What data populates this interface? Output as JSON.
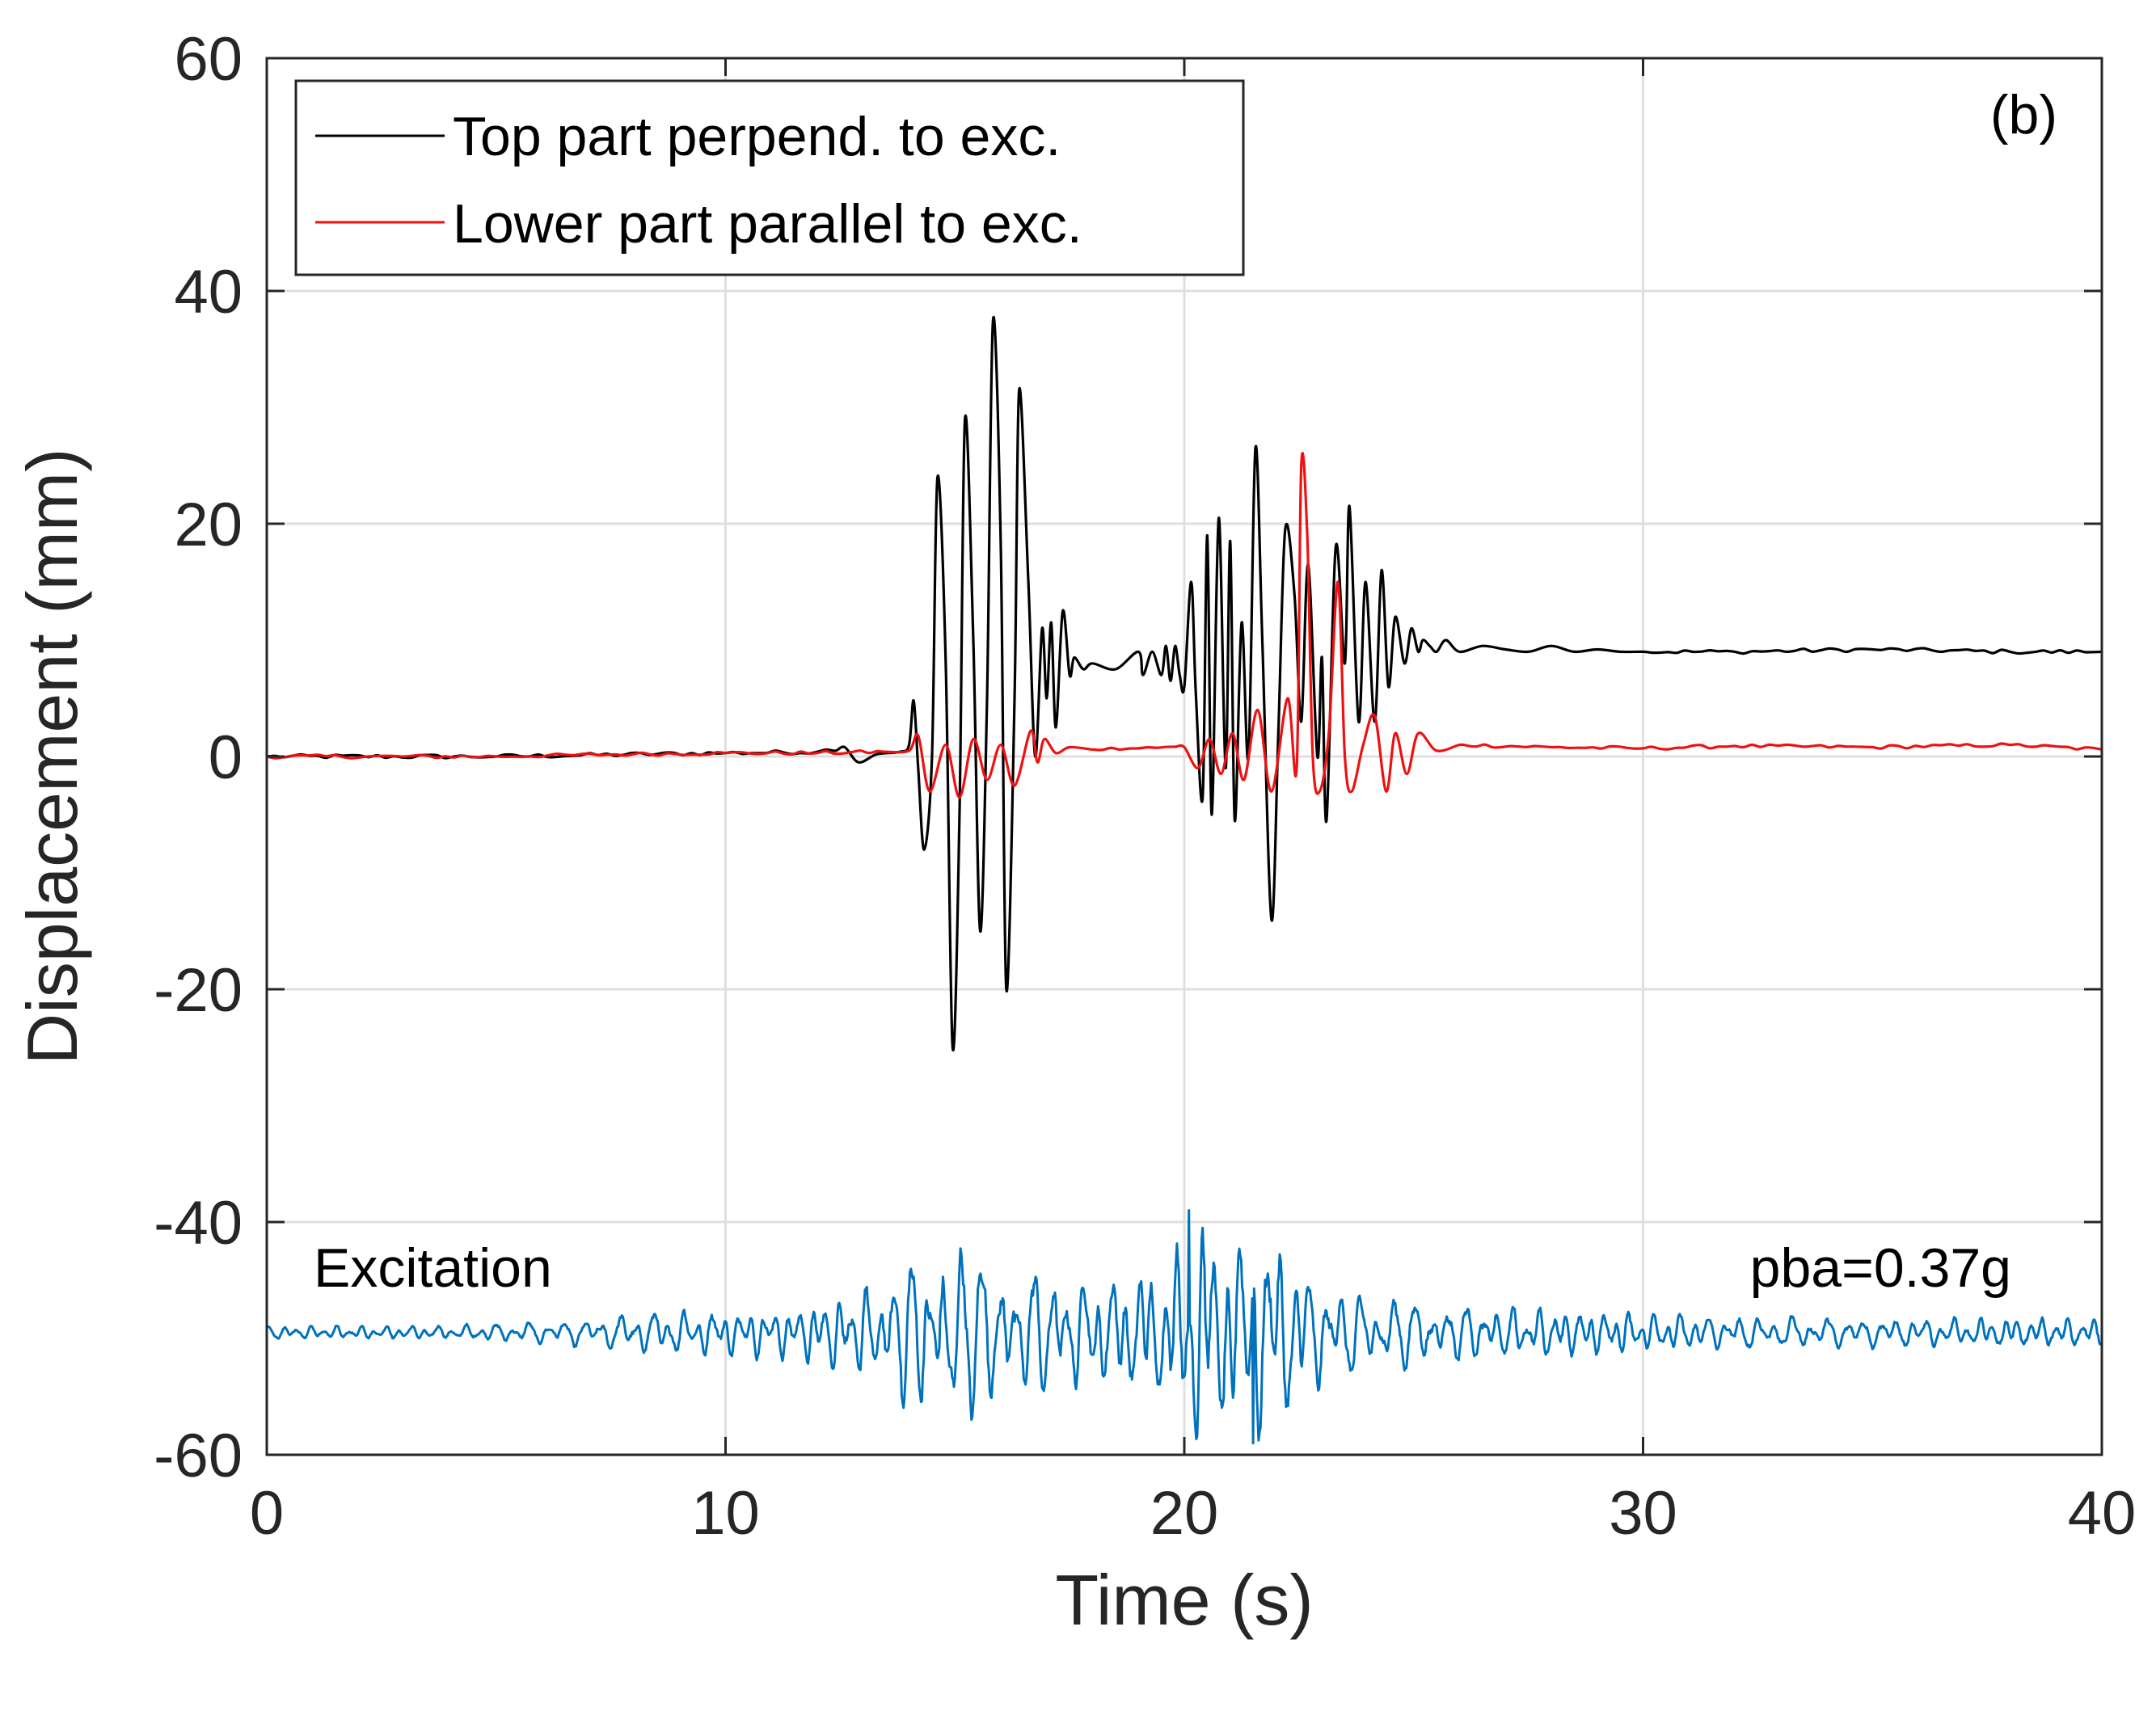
{
  "chart_data": {
    "type": "line",
    "panel_label": "(b)",
    "xlabel": "Time (s)",
    "ylabel": "Displacement (mm)",
    "xlim": [
      0,
      40
    ],
    "ylim": [
      -60,
      60
    ],
    "xticks": [
      0,
      10,
      20,
      30,
      40
    ],
    "yticks": [
      -60,
      -40,
      -20,
      0,
      20,
      40,
      60
    ],
    "grid": true,
    "legend_position": "top-left",
    "annotations": [
      {
        "text": "Excitation",
        "x": 1.0,
        "y": -44.5,
        "anchor": "start"
      },
      {
        "text": "pba=0.37g",
        "x": 38.0,
        "y": -44.5,
        "anchor": "end"
      }
    ],
    "colors": {
      "axis": "#262626",
      "grid": "#dfdfdf"
    },
    "series": [
      {
        "name": "Top part perpend. to exc.",
        "color": "#000000",
        "x": [
          0,
          5,
          10,
          12,
          12.6,
          12.9,
          13.3,
          13.8,
          14.0,
          14.1,
          14.2,
          14.33,
          14.5,
          14.62,
          14.8,
          14.95,
          15.1,
          15.22,
          15.4,
          15.55,
          15.7,
          15.83,
          16.0,
          16.12,
          16.3,
          16.4,
          16.6,
          16.75,
          16.9,
          17.0,
          17.1,
          17.2,
          17.35,
          17.5,
          17.6,
          17.8,
          18.0,
          18.5,
          19.0,
          19.1,
          19.3,
          19.5,
          19.6,
          19.7,
          19.8,
          19.9,
          20.0,
          20.15,
          20.25,
          20.4,
          20.5,
          20.6,
          20.75,
          20.9,
          21.0,
          21.1,
          21.25,
          21.4,
          21.55,
          21.7,
          21.9,
          22.05,
          22.2,
          22.4,
          22.55,
          22.7,
          22.9,
          23.0,
          23.1,
          23.3,
          23.5,
          23.6,
          23.8,
          23.95,
          24.15,
          24.3,
          24.45,
          24.6,
          24.8,
          24.95,
          25.1,
          25.2,
          25.35,
          25.5,
          25.7,
          26.0,
          26.5,
          27.0,
          27.5,
          28.0,
          28.5,
          29.0,
          29.5,
          30,
          32,
          35,
          38,
          40
        ],
        "y": [
          0,
          0,
          0.3,
          0.4,
          0.8,
          -0.5,
          0.2,
          0.4,
          1.0,
          4.8,
          -1.0,
          -8.0,
          0,
          24.0,
          8.0,
          -25.0,
          -5.0,
          29.0,
          10.0,
          -15.0,
          5.0,
          37.5,
          18.0,
          -20.0,
          5.0,
          31.5,
          15.0,
          0,
          11.0,
          5.0,
          11.5,
          2.5,
          12.5,
          7.0,
          8.5,
          7.5,
          8.0,
          7.5,
          9.0,
          7.0,
          9.0,
          7.0,
          9.5,
          6.5,
          9.5,
          7.0,
          6.0,
          15.0,
          5.5,
          -3.5,
          19.0,
          -5.0,
          20.5,
          -1.0,
          18.5,
          -5.5,
          11.5,
          0,
          26.5,
          10.0,
          -14.0,
          2.0,
          19.5,
          14.0,
          3.0,
          16.5,
          0,
          8.5,
          -5.5,
          18.0,
          8.0,
          21.5,
          3.0,
          15.0,
          3.0,
          16.0,
          6.0,
          12.0,
          8.0,
          11.0,
          9.0,
          10.0,
          9.5,
          9.0,
          10.0,
          9.0,
          9.5,
          9.2,
          9.0,
          9.5,
          9.0,
          9.2,
          9.0,
          9.0,
          9.0,
          9.2,
          9.0,
          9.0
        ]
      },
      {
        "name": "Lower part parallel to exc.",
        "color": "#ee1111",
        "x": [
          0,
          5,
          8,
          10,
          12,
          13.5,
          14.0,
          14.2,
          14.45,
          14.8,
          15.1,
          15.4,
          15.7,
          16.0,
          16.3,
          16.65,
          16.8,
          16.95,
          17.2,
          17.5,
          18,
          19,
          20,
          20.3,
          20.55,
          20.8,
          21.05,
          21.3,
          21.6,
          21.9,
          22.25,
          22.45,
          22.55,
          22.68,
          22.8,
          22.95,
          23.15,
          23.35,
          23.5,
          23.65,
          23.9,
          24.15,
          24.4,
          24.6,
          24.85,
          25.1,
          25.5,
          26,
          28,
          30,
          32,
          35,
          38,
          40
        ],
        "y": [
          0,
          0,
          0.2,
          0.3,
          0.3,
          0.4,
          0.5,
          1.8,
          -3.0,
          1.0,
          -3.5,
          1.5,
          -2.0,
          1.0,
          -2.5,
          2.2,
          -0.5,
          1.5,
          0.3,
          0.8,
          0.6,
          0.7,
          0.8,
          -1.0,
          1.5,
          -1.5,
          2.0,
          -2.0,
          4.0,
          -3.0,
          5.0,
          -1.0,
          25.0,
          19.0,
          0,
          -3.0,
          2.0,
          15.0,
          0,
          -3.0,
          1.0,
          3.5,
          -3.0,
          2.0,
          -1.5,
          2.0,
          0.5,
          1.0,
          0.8,
          0.7,
          0.9,
          0.8,
          1.0,
          0.6
        ]
      },
      {
        "name": "Excitation",
        "color": "#0072bd",
        "envelope": {
          "t": [
            0,
            4,
            7,
            8.5,
            10,
            11.5,
            12.5,
            13.5,
            14,
            14.5,
            15.5,
            16.5,
            17.5,
            18.5,
            19.5,
            20,
            20.2,
            21,
            21.5,
            22,
            22.5,
            23,
            24,
            25,
            26,
            28,
            30,
            32,
            35,
            38,
            40
          ],
          "a": [
            0.6,
            0.6,
            1.2,
            2.0,
            2.0,
            2.3,
            3.5,
            4.5,
            7.0,
            8.5,
            7.0,
            6.0,
            5.0,
            5.0,
            6.0,
            8.0,
            11.0,
            8.0,
            10.0,
            8.5,
            6.5,
            4.5,
            3.5,
            3.0,
            2.5,
            2.2,
            1.8,
            1.5,
            1.3,
            1.3,
            1.3
          ]
        },
        "baseline": -49.5,
        "peak_max": -39.0,
        "peak_min": -59.0
      }
    ]
  }
}
